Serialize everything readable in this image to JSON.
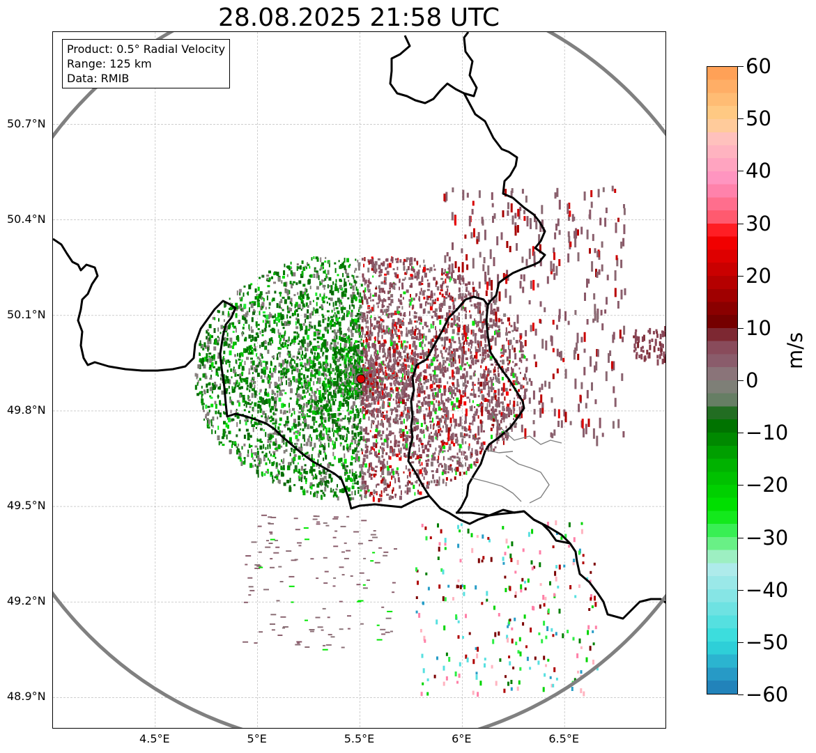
{
  "title": "28.08.2025 21:58 UTC",
  "info": {
    "product": "Product: 0.5° Radial Velocity",
    "range": "Range: 125 km",
    "data": "Data: RMIB"
  },
  "map": {
    "lon_range": [
      4.0,
      7.0
    ],
    "lat_range": [
      48.8,
      50.99
    ],
    "radar_site": {
      "lon": 5.505,
      "lat": 49.914
    },
    "range_ring_km": 125,
    "lat_ticks": [
      {
        "value": 50.7,
        "label": "50.7°N"
      },
      {
        "value": 50.4,
        "label": "50.4°N"
      },
      {
        "value": 50.1,
        "label": "50.1°N"
      },
      {
        "value": 49.8,
        "label": "49.8°N"
      },
      {
        "value": 49.5,
        "label": "49.5°N"
      },
      {
        "value": 49.2,
        "label": "49.2°N"
      },
      {
        "value": 48.9,
        "label": "48.9°N"
      }
    ],
    "lon_ticks": [
      {
        "value": 4.5,
        "label": "4.5°E"
      },
      {
        "value": 5.0,
        "label": "5°E"
      },
      {
        "value": 5.5,
        "label": "5.5°E"
      },
      {
        "value": 6.0,
        "label": "6°E"
      },
      {
        "value": 6.5,
        "label": "6.5°E"
      }
    ],
    "colors": {
      "border": "#000000",
      "luxembourg_border": "#808080",
      "range_ring": "#808080",
      "grid": "#b0b0b0",
      "radar_site": "#e00000"
    }
  },
  "colorbar": {
    "unit": "m/s",
    "min": -60,
    "max": 60,
    "ticks": [
      {
        "value": 60,
        "label": "60"
      },
      {
        "value": 50,
        "label": "50"
      },
      {
        "value": 40,
        "label": "40"
      },
      {
        "value": 30,
        "label": "30"
      },
      {
        "value": 20,
        "label": "20"
      },
      {
        "value": 10,
        "label": "10"
      },
      {
        "value": 0,
        "label": "0"
      },
      {
        "value": -10,
        "label": "−10"
      },
      {
        "value": -20,
        "label": "−20"
      },
      {
        "value": -30,
        "label": "−30"
      },
      {
        "value": -40,
        "label": "−40"
      },
      {
        "value": -50,
        "label": "−50"
      },
      {
        "value": -60,
        "label": "−60"
      }
    ],
    "stops": [
      {
        "v": -60,
        "c": "#1f77b4"
      },
      {
        "v": -55,
        "c": "#2aa6cc"
      },
      {
        "v": -50,
        "c": "#2fdcdc"
      },
      {
        "v": -42,
        "c": "#80e4e4"
      },
      {
        "v": -35,
        "c": "#b8ecec"
      },
      {
        "v": -33,
        "c": "#8cf0a8"
      },
      {
        "v": -29,
        "c": "#3cf05a"
      },
      {
        "v": -25,
        "c": "#00e600"
      },
      {
        "v": -15,
        "c": "#00aa00"
      },
      {
        "v": -7,
        "c": "#006400"
      },
      {
        "v": -5,
        "c": "#5a7d5a"
      },
      {
        "v": 0,
        "c": "#8a8080"
      },
      {
        "v": 4,
        "c": "#8a5a6a"
      },
      {
        "v": 8,
        "c": "#884050"
      },
      {
        "v": 10,
        "c": "#6a0000"
      },
      {
        "v": 20,
        "c": "#c00000"
      },
      {
        "v": 28,
        "c": "#ff0000"
      },
      {
        "v": 30,
        "c": "#ff5060"
      },
      {
        "v": 38,
        "c": "#ff90c0"
      },
      {
        "v": 46,
        "c": "#ffc0c0"
      },
      {
        "v": 50,
        "c": "#ffd08a"
      },
      {
        "v": 60,
        "c": "#ff9a50"
      }
    ]
  }
}
